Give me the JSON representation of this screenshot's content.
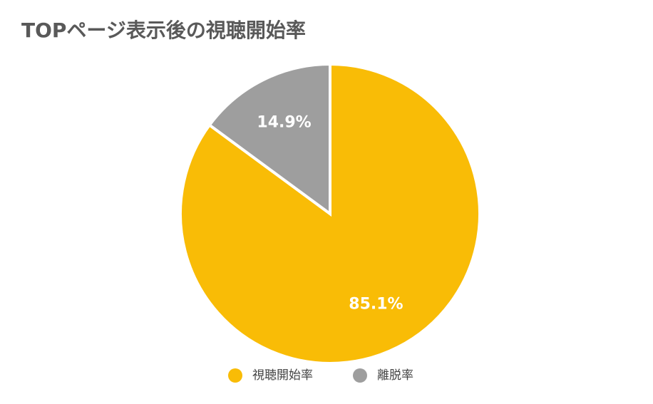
{
  "chart_data": {
    "type": "pie",
    "title": "TOPページ表示後の視聴開始率",
    "categories": [
      "視聴開始率",
      "離脱率"
    ],
    "values": [
      85.1,
      14.9
    ],
    "value_labels": [
      "85.1%",
      "14.9%"
    ],
    "colors": [
      "#f9bc06",
      "#9e9e9e"
    ],
    "legend": "bottom"
  }
}
